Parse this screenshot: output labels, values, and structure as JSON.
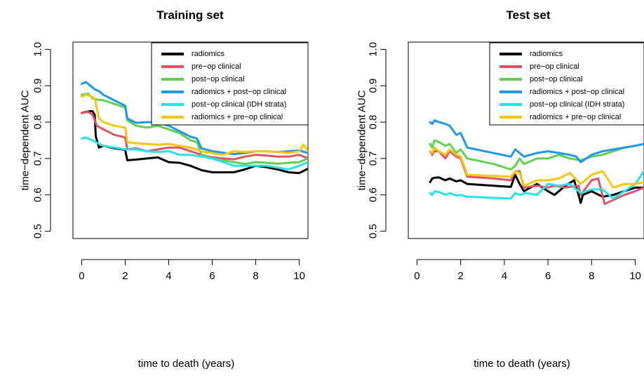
{
  "chart_data": [
    {
      "type": "line",
      "title": "Training set",
      "xlabel": "time to death (years)",
      "ylabel": "time−dependent AUC",
      "xlim": [
        0,
        10.4
      ],
      "ylim": [
        0.5,
        1.0
      ],
      "xticks": [
        "0",
        "2",
        "4",
        "6",
        "8",
        "10"
      ],
      "yticks": [
        "0.5",
        "0.6",
        "0.7",
        "0.8",
        "0.9",
        "1.0"
      ],
      "legend_position": "top-right",
      "grid": false,
      "series": [
        {
          "name": "radiomics",
          "color": "#000000",
          "x": [
            0,
            0.2,
            0.4,
            0.5,
            0.6,
            0.65,
            0.8,
            1.0,
            1.5,
            2.0,
            2.1,
            2.5,
            3.0,
            3.5,
            4.0,
            4.5,
            5.0,
            5.5,
            6.0,
            7.0,
            7.5,
            8.0,
            8.5,
            9.0,
            9.5,
            10.0,
            10.4
          ],
          "y": [
            0.825,
            0.828,
            0.83,
            0.83,
            0.82,
            0.76,
            0.73,
            0.735,
            0.728,
            0.724,
            0.695,
            0.697,
            0.7,
            0.703,
            0.69,
            0.688,
            0.68,
            0.668,
            0.662,
            0.662,
            0.67,
            0.68,
            0.676,
            0.67,
            0.662,
            0.66,
            0.672
          ]
        },
        {
          "name": "pre−op clinical",
          "color": "#DF536B",
          "x": [
            0,
            0.3,
            0.5,
            0.7,
            1.0,
            1.5,
            2.0,
            2.1,
            2.5,
            3.0,
            3.5,
            4.0,
            4.5,
            5.0,
            5.5,
            6.0,
            6.5,
            7.0,
            7.5,
            8.0,
            8.5,
            9.0,
            9.5,
            10.0,
            10.4
          ],
          "y": [
            0.825,
            0.828,
            0.82,
            0.79,
            0.78,
            0.765,
            0.758,
            0.725,
            0.728,
            0.72,
            0.725,
            0.73,
            0.73,
            0.72,
            0.71,
            0.703,
            0.7,
            0.698,
            0.705,
            0.71,
            0.708,
            0.705,
            0.705,
            0.71,
            0.7
          ]
        },
        {
          "name": "post−op clinical",
          "color": "#61D04F",
          "x": [
            0,
            0.3,
            0.5,
            0.7,
            1.0,
            1.5,
            2.0,
            2.1,
            2.5,
            3.0,
            3.5,
            4.0,
            4.5,
            5.0,
            5.3,
            5.5,
            6.0,
            6.5,
            7.0,
            7.5,
            8.0,
            8.5,
            9.0,
            9.5,
            10.0,
            10.4
          ],
          "y": [
            0.875,
            0.878,
            0.865,
            0.862,
            0.86,
            0.85,
            0.84,
            0.805,
            0.79,
            0.785,
            0.79,
            0.78,
            0.77,
            0.75,
            0.745,
            0.71,
            0.7,
            0.695,
            0.69,
            0.685,
            0.69,
            0.688,
            0.686,
            0.688,
            0.69,
            0.7
          ]
        },
        {
          "name": "radiomics + post−op clinical",
          "color": "#2297E6",
          "x": [
            0,
            0.2,
            0.4,
            0.6,
            0.8,
            1.0,
            1.5,
            2.0,
            2.1,
            2.5,
            3.0,
            3.5,
            4.0,
            4.5,
            5.0,
            5.3,
            5.5,
            6.0,
            7.0,
            7.5,
            8.0,
            8.5,
            9.0,
            9.5,
            10.0,
            10.4
          ],
          "y": [
            0.905,
            0.91,
            0.9,
            0.89,
            0.885,
            0.875,
            0.86,
            0.845,
            0.81,
            0.798,
            0.8,
            0.8,
            0.79,
            0.775,
            0.76,
            0.755,
            0.728,
            0.72,
            0.712,
            0.715,
            0.72,
            0.72,
            0.718,
            0.72,
            0.722,
            0.715
          ]
        },
        {
          "name": "post−op clinical (IDH strata)",
          "color": "#28E2E5",
          "x": [
            0,
            0.2,
            0.5,
            0.8,
            1.0,
            1.5,
            2.0,
            2.5,
            3.0,
            3.5,
            4.0,
            4.5,
            5.0,
            5.5,
            6.0,
            6.5,
            7.0,
            7.5,
            8.0,
            8.5,
            9.0,
            9.5,
            10.0,
            10.4
          ],
          "y": [
            0.755,
            0.757,
            0.75,
            0.74,
            0.735,
            0.73,
            0.725,
            0.725,
            0.72,
            0.718,
            0.72,
            0.71,
            0.71,
            0.705,
            0.7,
            0.69,
            0.68,
            0.68,
            0.68,
            0.68,
            0.675,
            0.67,
            0.68,
            0.69
          ]
        },
        {
          "name": "radiomics + pre−op clinical",
          "color": "#F5C710",
          "x": [
            0,
            0.2,
            0.4,
            0.6,
            0.8,
            1.0,
            1.5,
            2.0,
            2.1,
            2.5,
            3.0,
            3.5,
            4.0,
            4.5,
            5.0,
            5.5,
            6.0,
            6.5,
            7.0,
            7.5,
            8.0,
            8.5,
            9.0,
            9.5,
            10.0,
            10.2,
            10.4
          ],
          "y": [
            0.87,
            0.875,
            0.872,
            0.865,
            0.81,
            0.8,
            0.79,
            0.785,
            0.745,
            0.742,
            0.74,
            0.738,
            0.74,
            0.735,
            0.73,
            0.72,
            0.715,
            0.71,
            0.72,
            0.718,
            0.72,
            0.72,
            0.718,
            0.715,
            0.72,
            0.738,
            0.72
          ]
        }
      ],
      "legend": [
        "radiomics",
        "pre−op clinical",
        "post−op clinical",
        "radiomics + post−op clinical",
        "post−op clinical (IDH strata)",
        "radiomics + pre−op clinical"
      ]
    },
    {
      "type": "line",
      "title": "Test set",
      "xlabel": "time to death (years)",
      "ylabel": "time−dependent AUC",
      "xlim": [
        0,
        10.4
      ],
      "ylim": [
        0.5,
        1.0
      ],
      "xticks": [
        "0",
        "2",
        "4",
        "6",
        "8",
        "10"
      ],
      "yticks": [
        "0.5",
        "0.6",
        "0.7",
        "0.8",
        "0.9",
        "1.0"
      ],
      "legend_position": "top-right",
      "grid": false,
      "series": [
        {
          "name": "radiomics",
          "color": "#000000",
          "x": [
            0.6,
            0.7,
            0.8,
            1.0,
            1.3,
            1.5,
            1.8,
            2.0,
            2.3,
            3.5,
            4.3,
            4.5,
            4.7,
            4.9,
            5.5,
            6.0,
            6.3,
            6.8,
            7.2,
            7.4,
            7.5,
            7.6,
            8.0,
            8.5,
            9.0,
            9.5,
            10.0,
            10.4
          ],
          "y": [
            0.635,
            0.645,
            0.647,
            0.648,
            0.64,
            0.645,
            0.637,
            0.64,
            0.63,
            0.625,
            0.622,
            0.655,
            0.63,
            0.61,
            0.63,
            0.61,
            0.6,
            0.625,
            0.64,
            0.6,
            0.578,
            0.6,
            0.61,
            0.595,
            0.6,
            0.61,
            0.62,
            0.62
          ]
        },
        {
          "name": "pre−op clinical",
          "color": "#DF536B",
          "x": [
            0.6,
            0.7,
            0.8,
            1.0,
            1.3,
            1.5,
            1.8,
            2.0,
            2.3,
            3.5,
            4.3,
            4.5,
            4.7,
            4.9,
            5.5,
            6.0,
            6.3,
            6.8,
            7.4,
            7.5,
            8.0,
            8.3,
            8.6,
            9.5,
            10.0,
            10.4
          ],
          "y": [
            0.72,
            0.71,
            0.72,
            0.72,
            0.7,
            0.72,
            0.705,
            0.7,
            0.65,
            0.645,
            0.64,
            0.665,
            0.665,
            0.62,
            0.625,
            0.62,
            0.625,
            0.62,
            0.625,
            0.6,
            0.64,
            0.645,
            0.575,
            0.6,
            0.61,
            0.62
          ]
        },
        {
          "name": "post−op clinical",
          "color": "#61D04F",
          "x": [
            0.6,
            0.7,
            0.8,
            1.0,
            1.3,
            1.5,
            1.8,
            2.0,
            2.3,
            3.5,
            4.3,
            4.5,
            4.7,
            4.9,
            5.5,
            6.0,
            6.5,
            7.0,
            7.5,
            8.0,
            8.5,
            9.0,
            9.5,
            10.0,
            10.4
          ],
          "y": [
            0.74,
            0.73,
            0.75,
            0.745,
            0.735,
            0.74,
            0.715,
            0.725,
            0.7,
            0.685,
            0.67,
            0.68,
            0.7,
            0.685,
            0.7,
            0.7,
            0.71,
            0.7,
            0.695,
            0.705,
            0.71,
            0.72,
            0.73,
            0.735,
            0.74
          ]
        },
        {
          "name": "radiomics + post−op clinical",
          "color": "#2297E6",
          "x": [
            0.6,
            0.7,
            0.8,
            1.0,
            1.3,
            1.5,
            1.8,
            2.0,
            2.3,
            4.3,
            4.5,
            4.7,
            4.9,
            5.5,
            6.0,
            6.5,
            7.0,
            7.3,
            7.5,
            8.0,
            8.5,
            9.0,
            9.5,
            10.0,
            10.4
          ],
          "y": [
            0.8,
            0.795,
            0.805,
            0.8,
            0.795,
            0.79,
            0.765,
            0.77,
            0.73,
            0.705,
            0.725,
            0.715,
            0.705,
            0.715,
            0.72,
            0.715,
            0.71,
            0.705,
            0.69,
            0.71,
            0.72,
            0.725,
            0.73,
            0.735,
            0.74
          ]
        },
        {
          "name": "post−op clinical (IDH strata)",
          "color": "#28E2E5",
          "x": [
            0.6,
            0.7,
            0.8,
            1.0,
            1.3,
            1.5,
            1.8,
            2.0,
            2.3,
            4.3,
            4.5,
            4.7,
            5.0,
            5.5,
            6.0,
            6.5,
            7.0,
            7.5,
            8.0,
            8.5,
            9.0,
            9.5,
            10.0,
            10.4
          ],
          "y": [
            0.605,
            0.6,
            0.61,
            0.608,
            0.6,
            0.605,
            0.598,
            0.6,
            0.595,
            0.59,
            0.605,
            0.6,
            0.605,
            0.6,
            0.63,
            0.625,
            0.63,
            0.605,
            0.615,
            0.615,
            0.59,
            0.61,
            0.63,
            0.665
          ]
        },
        {
          "name": "radiomics + pre−op clinical",
          "color": "#F5C710",
          "x": [
            0.6,
            0.7,
            0.8,
            1.0,
            1.3,
            1.5,
            1.8,
            2.0,
            2.3,
            4.3,
            4.5,
            4.7,
            4.9,
            5.5,
            6.0,
            6.5,
            7.0,
            7.5,
            8.0,
            8.5,
            9.0,
            9.5,
            10.0,
            10.4
          ],
          "y": [
            0.72,
            0.715,
            0.73,
            0.72,
            0.71,
            0.725,
            0.71,
            0.705,
            0.655,
            0.65,
            0.665,
            0.66,
            0.625,
            0.64,
            0.64,
            0.645,
            0.66,
            0.63,
            0.655,
            0.665,
            0.62,
            0.63,
            0.63,
            0.635
          ]
        }
      ],
      "legend": [
        "radiomics",
        "pre−op clinical",
        "post−op clinical",
        "radiomics + post−op clinical",
        "post−op clinical (IDH strata)",
        "radiomics + pre−op clinical"
      ]
    }
  ]
}
